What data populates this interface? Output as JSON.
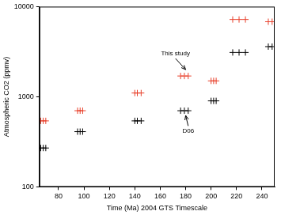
{
  "chart_data": {
    "type": "scatter",
    "x_label": "Time (Ma) 2004 GTS Timescale",
    "y_label": "Atmospheric CO2 (ppmv)",
    "log": "y",
    "grid": false,
    "xlim": [
      65,
      250
    ],
    "xticks": [
      80,
      100,
      120,
      140,
      160,
      180,
      200,
      220,
      240
    ],
    "ylim": [
      100,
      10000
    ],
    "yticks": [
      100,
      1000,
      10000
    ],
    "series": [
      {
        "color": "#e8412c",
        "marker": "plus",
        "x": [
          66,
          68,
          70,
          95,
          97,
          99,
          140,
          142,
          145,
          176,
          179,
          182,
          200,
          202,
          204,
          217,
          222,
          227,
          245,
          248
        ],
        "values": [
          540,
          540,
          540,
          700,
          700,
          700,
          1100,
          1100,
          1100,
          1700,
          1700,
          1700,
          1500,
          1500,
          1500,
          7200,
          7200,
          7200,
          6800,
          6800
        ]
      },
      {
        "color": "#000000",
        "marker": "plus",
        "x": [
          66,
          68,
          70,
          95,
          97,
          99,
          140,
          142,
          145,
          176,
          179,
          182,
          200,
          202,
          204,
          217,
          222,
          227,
          245,
          248
        ],
        "values": [
          270,
          270,
          270,
          410,
          410,
          410,
          540,
          540,
          540,
          700,
          700,
          700,
          900,
          900,
          900,
          3100,
          3100,
          3100,
          3600,
          3600
        ]
      }
    ],
    "annotations": [
      {
        "text": "This study",
        "x": 172,
        "y": 3000,
        "arrow_to": [
          180,
          2000
        ]
      },
      {
        "text": "D06",
        "x": 182,
        "y": 420,
        "arrow_to": [
          180,
          620
        ]
      }
    ]
  }
}
